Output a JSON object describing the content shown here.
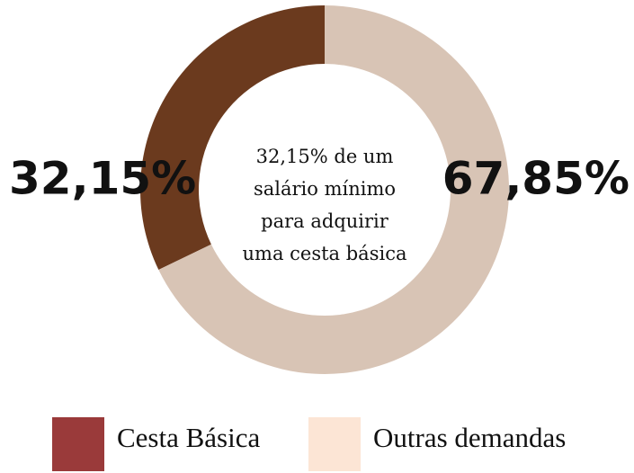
{
  "chart_data": {
    "type": "donut",
    "categories": [
      "Cesta Básica",
      "Outras demandas"
    ],
    "values": [
      32.15,
      67.85
    ],
    "value_labels": [
      "32,15%",
      "67,85%"
    ],
    "colors": [
      "#6b3a1e",
      "#d8c4b5"
    ],
    "legend_colors": [
      "#9a3a3a",
      "#fce5d5"
    ],
    "center_text": "32,15% de um salário mínimo para adquirir uma cesta básica"
  }
}
